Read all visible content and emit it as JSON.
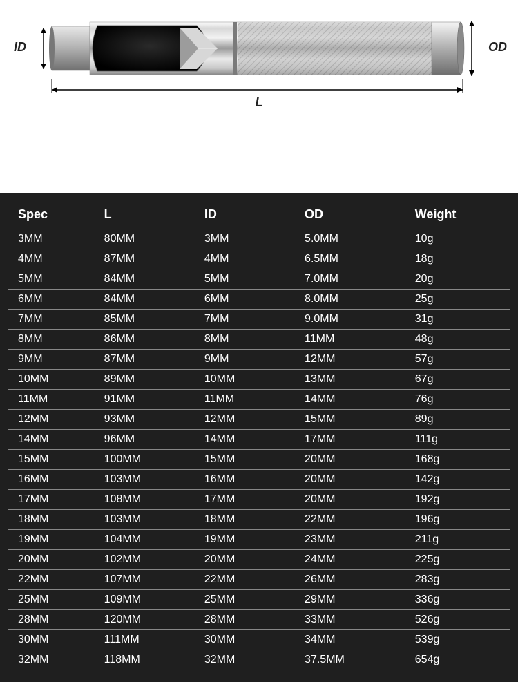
{
  "diagram": {
    "label_id": "ID",
    "label_od": "OD",
    "label_l": "L"
  },
  "table": {
    "columns": [
      "Spec",
      "L",
      "ID",
      "OD",
      "Weight"
    ],
    "rows": [
      [
        "3MM",
        "80MM",
        "3MM",
        "5.0MM",
        "10g"
      ],
      [
        "4MM",
        "87MM",
        "4MM",
        "6.5MM",
        "18g"
      ],
      [
        "5MM",
        "84MM",
        "5MM",
        "7.0MM",
        "20g"
      ],
      [
        "6MM",
        "84MM",
        "6MM",
        "8.0MM",
        "25g"
      ],
      [
        "7MM",
        "85MM",
        "7MM",
        "9.0MM",
        "31g"
      ],
      [
        "8MM",
        "86MM",
        "8MM",
        "11MM",
        "48g"
      ],
      [
        "9MM",
        "87MM",
        "9MM",
        "12MM",
        "57g"
      ],
      [
        "10MM",
        "89MM",
        "10MM",
        "13MM",
        "67g"
      ],
      [
        "11MM",
        "91MM",
        "11MM",
        "14MM",
        "76g"
      ],
      [
        "12MM",
        "93MM",
        "12MM",
        "15MM",
        "89g"
      ],
      [
        "14MM",
        "96MM",
        "14MM",
        "17MM",
        "111g"
      ],
      [
        "15MM",
        "100MM",
        "15MM",
        "20MM",
        "168g"
      ],
      [
        "16MM",
        "103MM",
        "16MM",
        "20MM",
        "142g"
      ],
      [
        "17MM",
        "108MM",
        "17MM",
        "20MM",
        "192g"
      ],
      [
        "18MM",
        "103MM",
        "18MM",
        "22MM",
        "196g"
      ],
      [
        "19MM",
        "104MM",
        "19MM",
        "23MM",
        "211g"
      ],
      [
        "20MM",
        "102MM",
        "20MM",
        "24MM",
        "225g"
      ],
      [
        "22MM",
        "107MM",
        "22MM",
        "26MM",
        "283g"
      ],
      [
        "25MM",
        "109MM",
        "25MM",
        "29MM",
        "336g"
      ],
      [
        "28MM",
        "120MM",
        "28MM",
        "33MM",
        "526g"
      ],
      [
        "30MM",
        "111MM",
        "30MM",
        "34MM",
        "539g"
      ],
      [
        "32MM",
        "118MM",
        "32MM",
        "37.5MM",
        "654g"
      ]
    ],
    "header_fontsize": 18,
    "cell_fontsize": 16,
    "background_color": "#1f1f1f",
    "text_color": "#ffffff",
    "border_color": "#888888"
  }
}
